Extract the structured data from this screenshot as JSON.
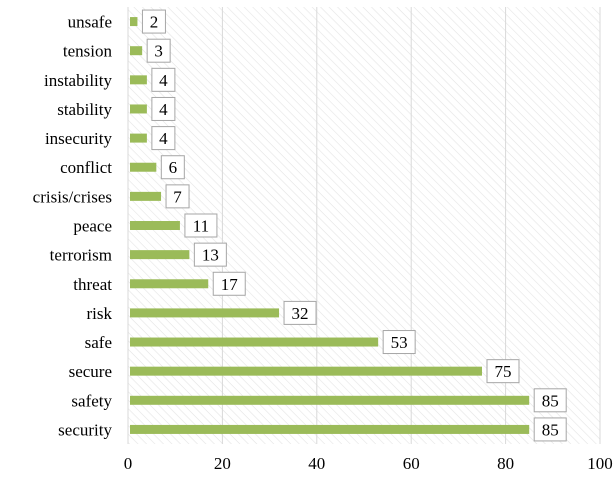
{
  "chart_data": {
    "type": "bar",
    "orientation": "horizontal",
    "categories": [
      "unsafe",
      "tension",
      "instability",
      "stability",
      "insecurity",
      "conflict",
      "crisis/crises",
      "peace",
      "terrorism",
      "threat",
      "risk",
      "safe",
      "secure",
      "safety",
      "security"
    ],
    "values": [
      2,
      3,
      4,
      4,
      4,
      6,
      7,
      11,
      13,
      17,
      32,
      53,
      75,
      85,
      85
    ],
    "xlim": [
      0,
      100
    ],
    "xticks": [
      0,
      20,
      40,
      60,
      80,
      100
    ],
    "grid": true,
    "data_labels": true,
    "legend": "none",
    "colors": {
      "bar": "#9bbb59",
      "plot_hatch": "#d9d9d9"
    }
  }
}
